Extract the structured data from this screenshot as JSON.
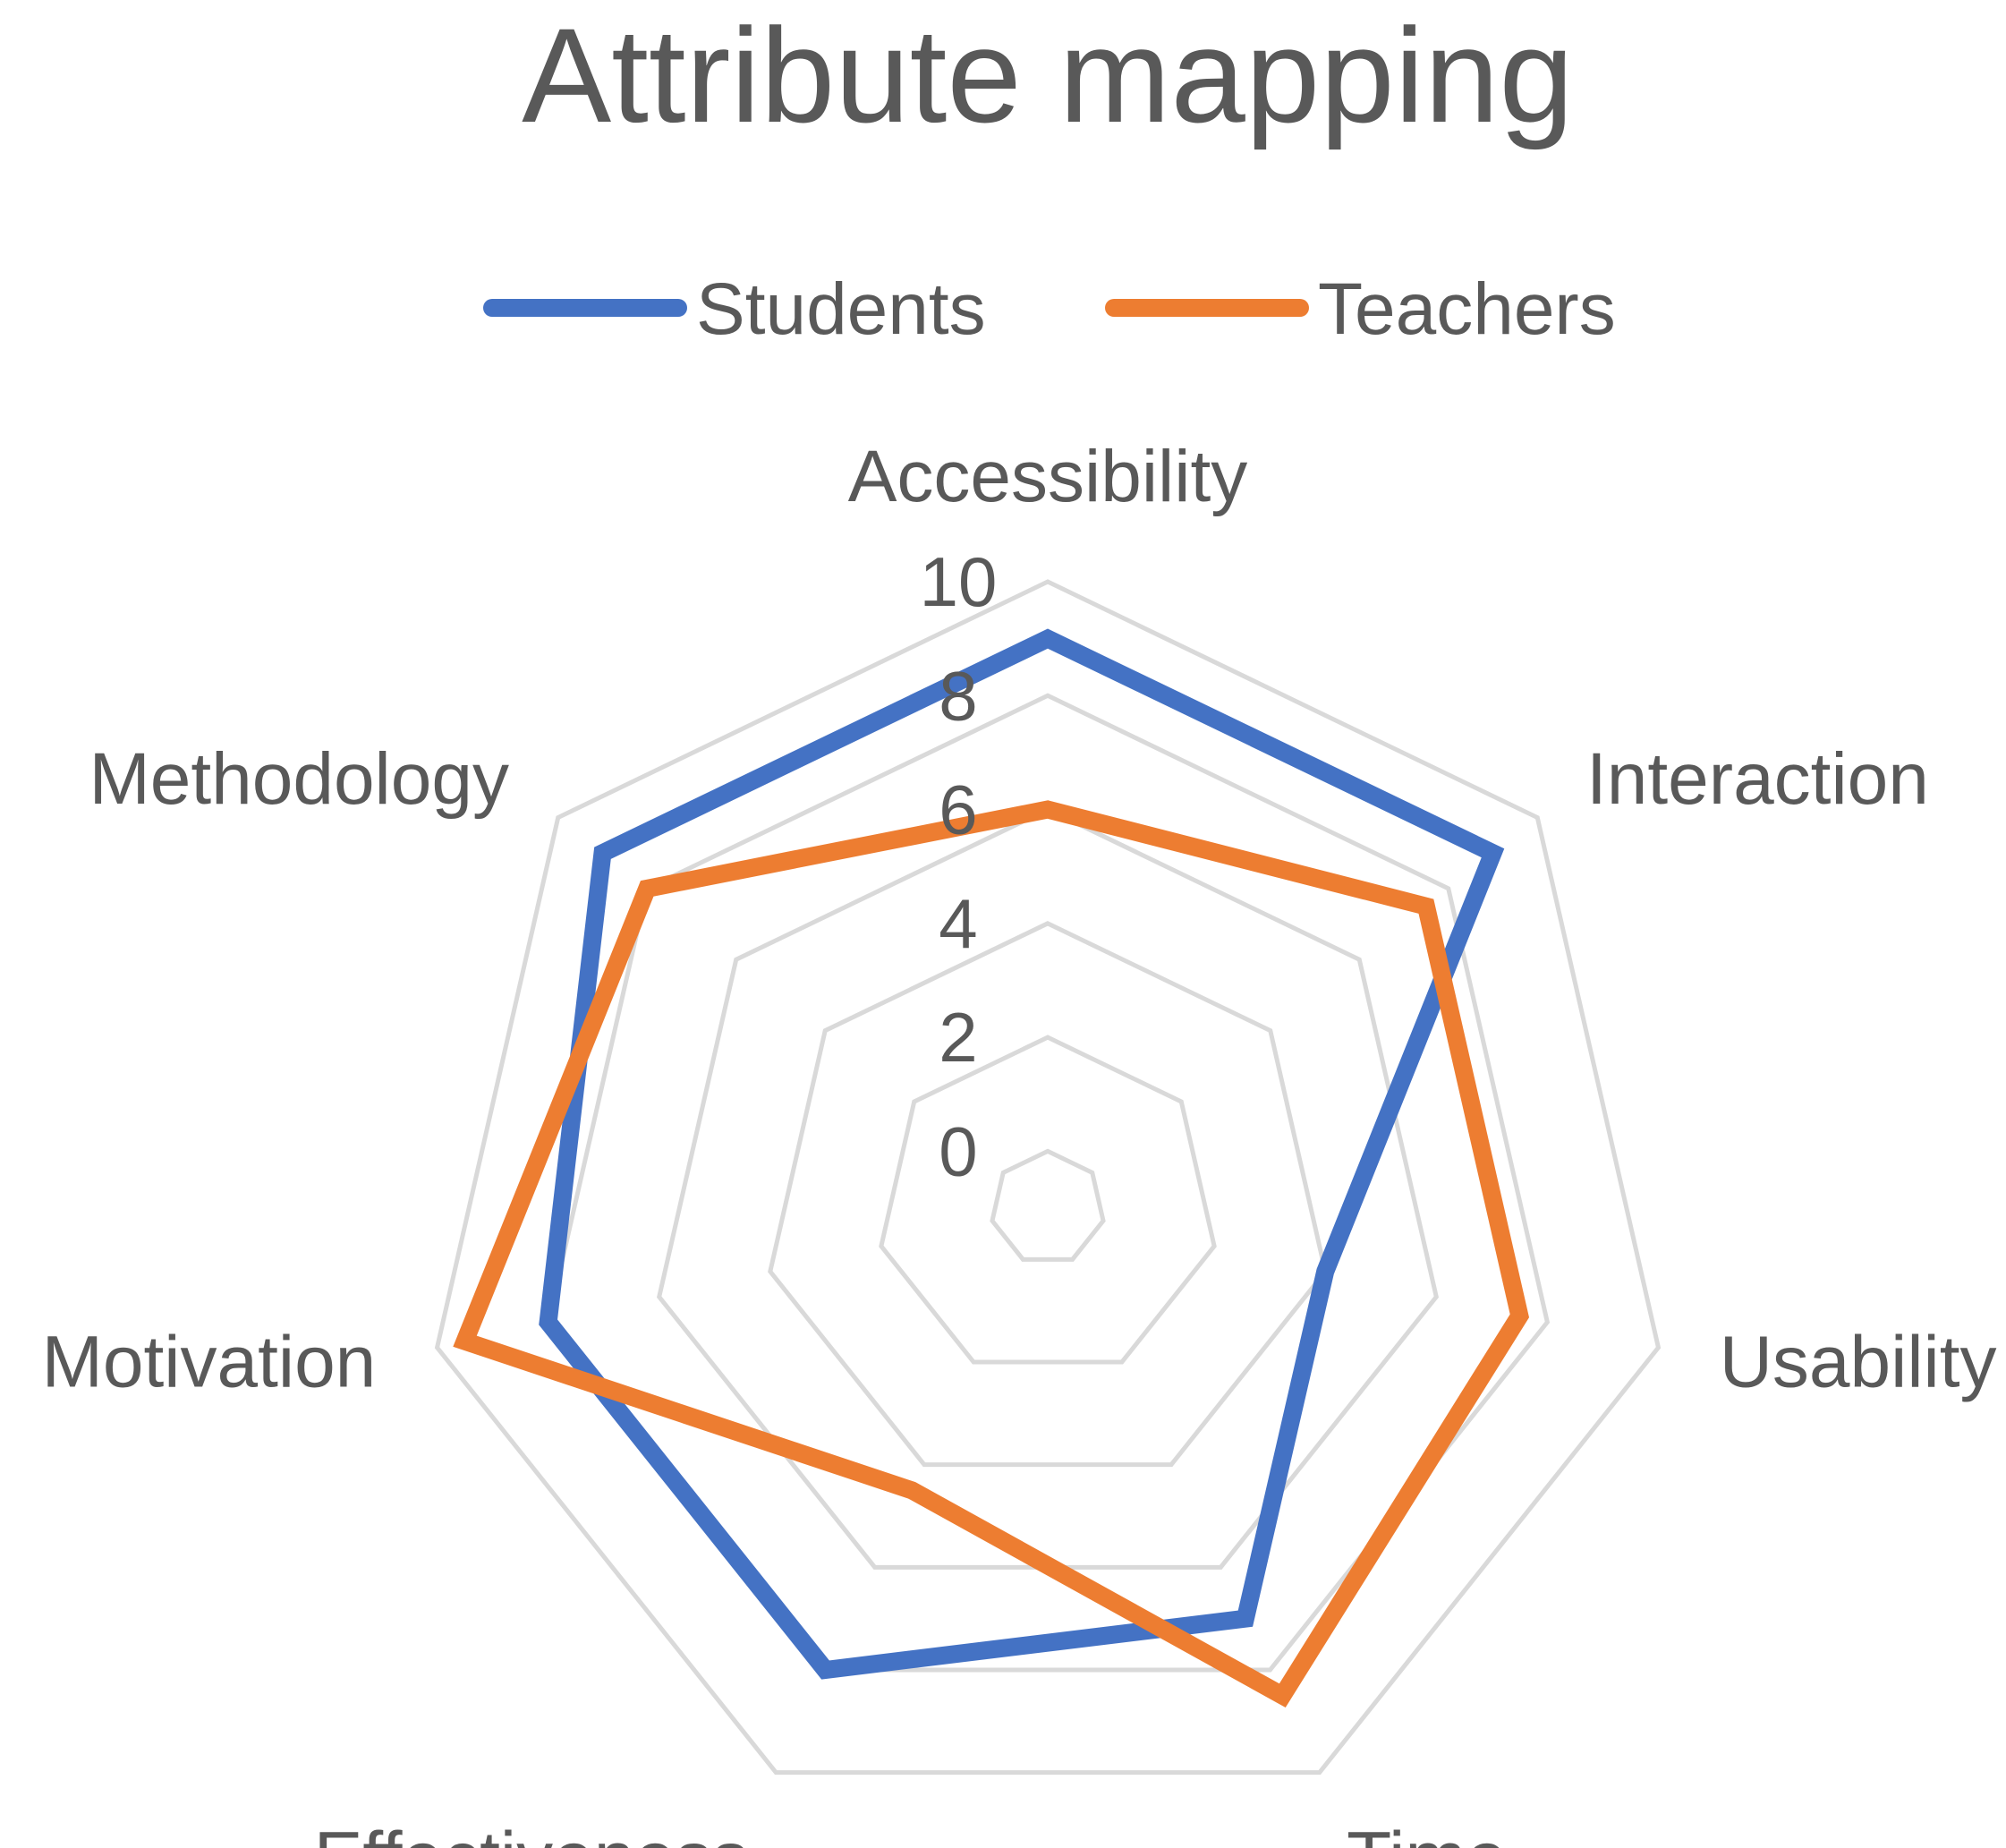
{
  "chart_data": {
    "type": "radar",
    "title": "Attribute mapping",
    "categories": [
      "Accessibility",
      "Interaction",
      "Usability",
      "Time",
      "Effectiveness",
      "Motivation",
      "Methodology"
    ],
    "series": [
      {
        "name": "Students",
        "color": "#4472c4",
        "values": [
          9,
          9,
          4,
          7,
          8,
          8,
          9
        ]
      },
      {
        "name": "Teachers",
        "color": "#ed7d31",
        "values": [
          6,
          7.5,
          7.5,
          8.5,
          4.5,
          9.5,
          8
        ]
      }
    ],
    "rlim": [
      0,
      10
    ],
    "ticks": [
      "0",
      "2",
      "4",
      "6",
      "8",
      "10"
    ],
    "grid": true,
    "legend_position": "top"
  }
}
